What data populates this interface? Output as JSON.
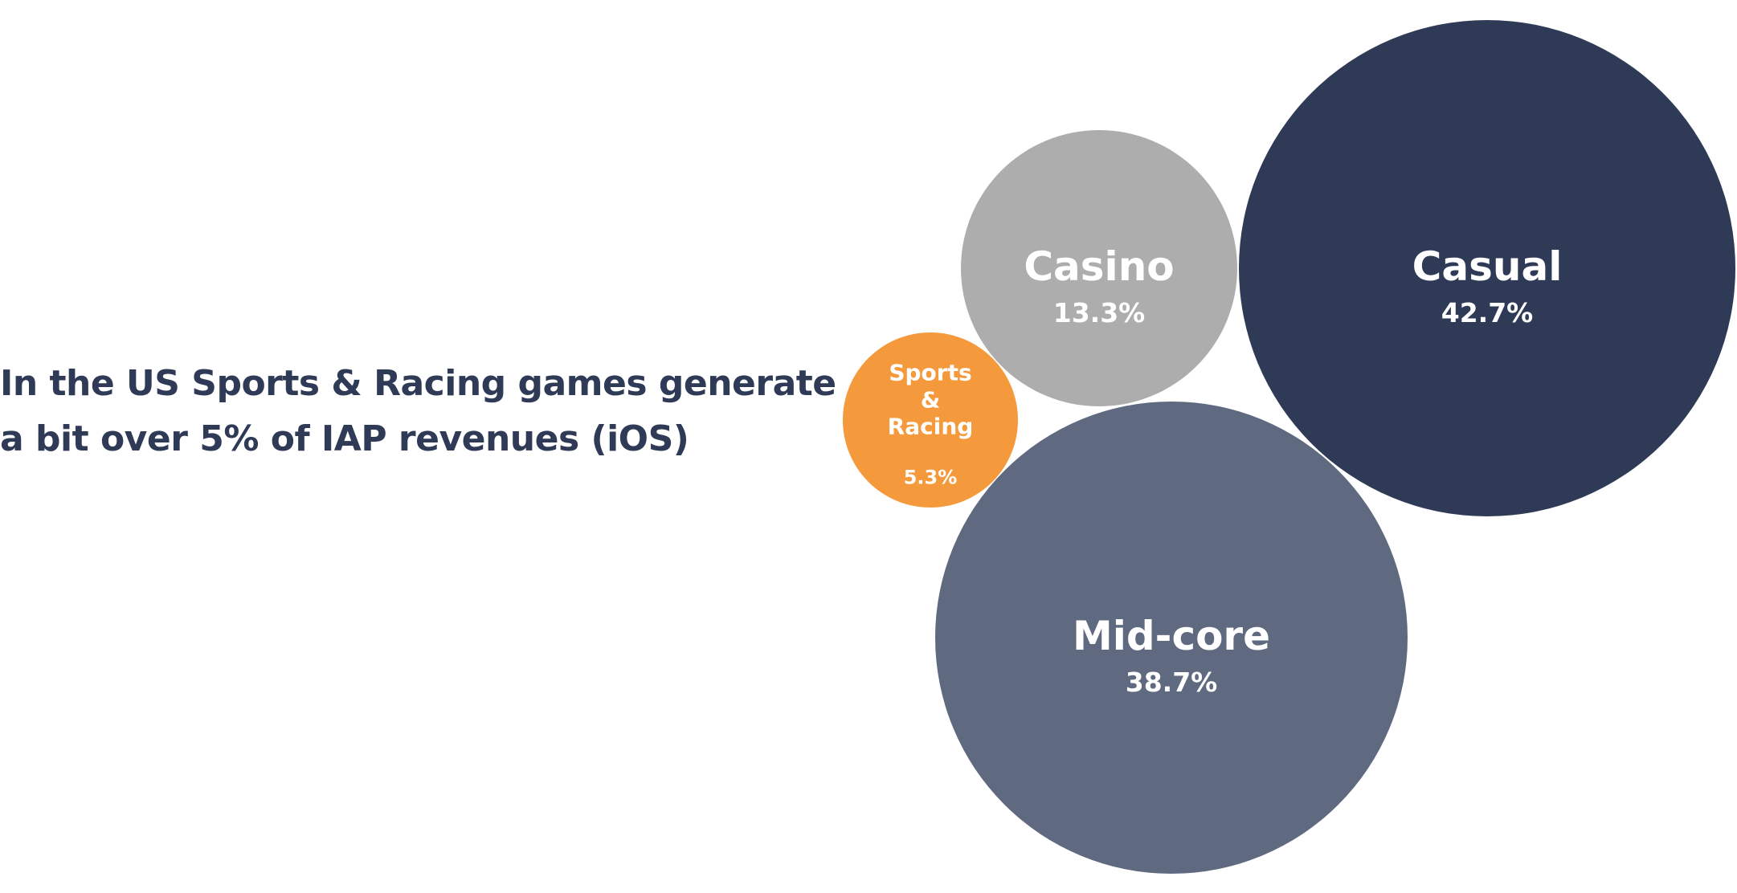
{
  "chart_data": {
    "type": "bubble",
    "title": [
      "In the US Sports & Racing games generate",
      "a bit over 5% of IAP revenues (iOS)"
    ],
    "categories": [
      "Casual",
      "Casino",
      "Mid-core",
      "Sports & Racing"
    ],
    "values": [
      42.7,
      13.3,
      38.7,
      5.3
    ],
    "value_labels": [
      "42.7%",
      "13.3%",
      "38.7%",
      "5.3%"
    ],
    "colors": [
      "#2e3a56",
      "#adadad",
      "#5f6a81",
      "#f59a3c"
    ]
  }
}
